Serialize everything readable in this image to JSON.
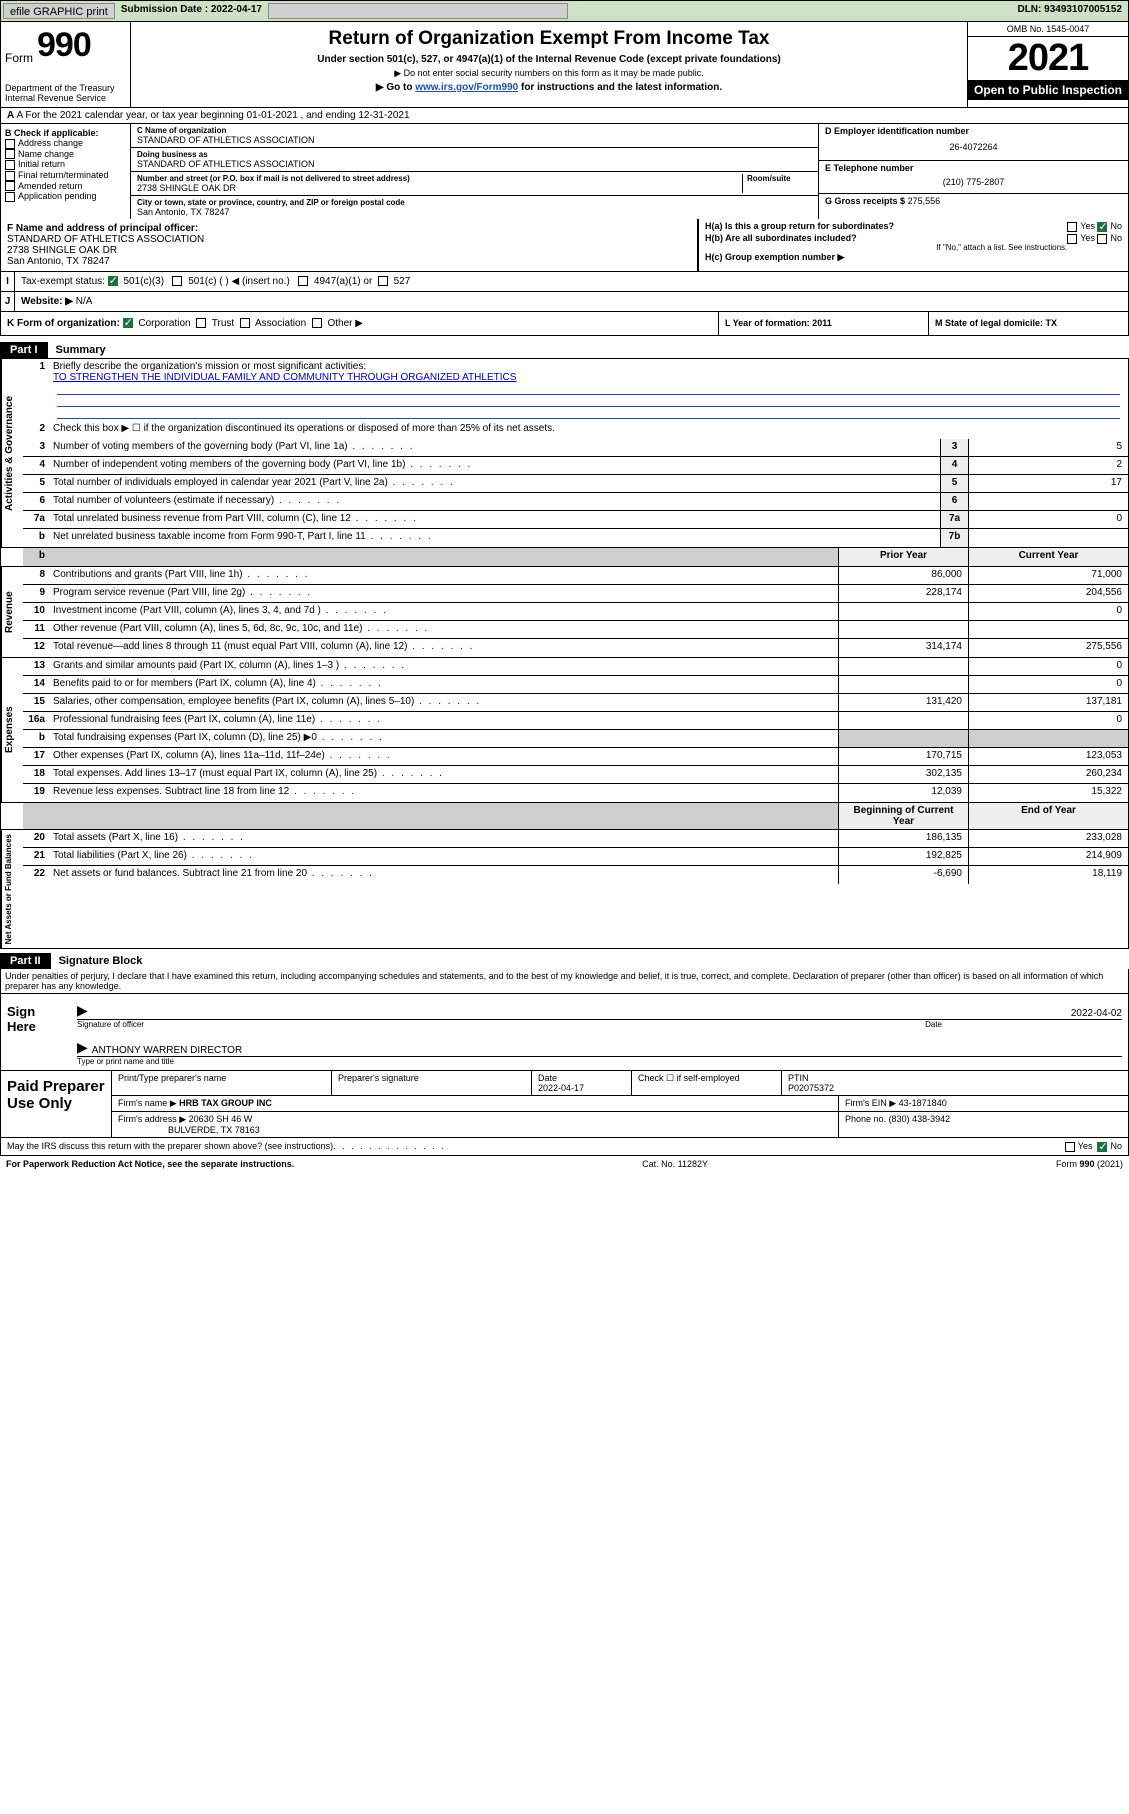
{
  "topbar": {
    "efile_btn": "efile GRAPHIC print",
    "submission_label": "Submission Date : 2022-04-17",
    "dln": "DLN: 93493107005152"
  },
  "header": {
    "form_prefix": "Form",
    "form_number": "990",
    "dept": "Department of the Treasury\nInternal Revenue Service",
    "title": "Return of Organization Exempt From Income Tax",
    "subtitle": "Under section 501(c), 527, or 4947(a)(1) of the Internal Revenue Code (except private foundations)",
    "note1": "▶ Do not enter social security numbers on this form as it may be made public.",
    "note2_pre": "▶ Go to ",
    "note2_link": "www.irs.gov/Form990",
    "note2_post": " for instructions and the latest information.",
    "omb": "OMB No. 1545-0047",
    "year": "2021",
    "open_public": "Open to Public Inspection"
  },
  "rowA": "A For the 2021 calendar year, or tax year beginning 01-01-2021   , and ending 12-31-2021",
  "colB": {
    "header": "B Check if applicable:",
    "items": [
      "Address change",
      "Name change",
      "Initial return",
      "Final return/terminated",
      "Amended return",
      "Application pending"
    ]
  },
  "colC": {
    "name_label": "C Name of organization",
    "name": "STANDARD OF ATHLETICS ASSOCIATION",
    "dba_label": "Doing business as",
    "dba": "STANDARD OF ATHLETICS ASSOCIATION",
    "addr_label": "Number and street (or P.O. box if mail is not delivered to street address)",
    "room_label": "Room/suite",
    "addr": "2738 SHINGLE OAK DR",
    "city_label": "City or town, state or province, country, and ZIP or foreign postal code",
    "city": "San Antonio, TX  78247"
  },
  "colDE": {
    "d_label": "D Employer identification number",
    "d_val": "26-4072264",
    "e_label": "E Telephone number",
    "e_val": "(210) 775-2807",
    "g_label": "G Gross receipts $",
    "g_val": "275,556"
  },
  "rowF": {
    "label": "F Name and address of principal officer:",
    "l1": "STANDARD OF ATHLETICS ASSOCIATION",
    "l2": "2738 SHINGLE OAK DR",
    "l3": "San Antonio, TX  78247"
  },
  "rowH": {
    "ha": "H(a)  Is this a group return for subordinates?",
    "ha_yes": "Yes",
    "ha_no": "No",
    "hb": "H(b)  Are all subordinates included?",
    "hb_yes": "Yes",
    "hb_no": "No",
    "hb_note": "If \"No,\" attach a list. See instructions.",
    "hc": "H(c)  Group exemption number ▶"
  },
  "rowI": {
    "label": "Tax-exempt status:",
    "o1": "501(c)(3)",
    "o2": "501(c) (   ) ◀ (insert no.)",
    "o3": "4947(a)(1) or",
    "o4": "527"
  },
  "rowJ": {
    "label": "Website: ▶",
    "val": "N/A"
  },
  "rowK": "K Form of organization:",
  "rowK_opts": [
    "Corporation",
    "Trust",
    "Association",
    "Other ▶"
  ],
  "rowL": "L Year of formation: 2011",
  "rowM": "M State of legal domicile: TX",
  "partI": {
    "tag": "Part I",
    "title": "Summary"
  },
  "summary": {
    "sectA": {
      "vtab": "Activities & Governance",
      "r1": "Briefly describe the organization's mission or most significant activities:",
      "r1_mission": "TO STRENGTHEN THE INDIVIDUAL FAMILY AND COMMUNITY THROUGH ORGANIZED ATHLETICS",
      "r2": "Check this box ▶ ☐  if the organization discontinued its operations or disposed of more than 25% of its net assets.",
      "rows": [
        {
          "n": "3",
          "d": "Number of voting members of the governing body (Part VI, line 1a)",
          "bx": "3",
          "v": "5"
        },
        {
          "n": "4",
          "d": "Number of independent voting members of the governing body (Part VI, line 1b)",
          "bx": "4",
          "v": "2"
        },
        {
          "n": "5",
          "d": "Total number of individuals employed in calendar year 2021 (Part V, line 2a)",
          "bx": "5",
          "v": "17"
        },
        {
          "n": "6",
          "d": "Total number of volunteers (estimate if necessary)",
          "bx": "6",
          "v": ""
        },
        {
          "n": "7a",
          "d": "Total unrelated business revenue from Part VIII, column (C), line 12",
          "bx": "7a",
          "v": "0"
        },
        {
          "n": "b",
          "d": "Net unrelated business taxable income from Form 990-T, Part I, line 11",
          "bx": "7b",
          "v": ""
        }
      ]
    },
    "head": {
      "prior": "Prior Year",
      "current": "Current Year"
    },
    "sectRev": {
      "vtab": "Revenue",
      "rows": [
        {
          "n": "8",
          "d": "Contributions and grants (Part VIII, line 1h)",
          "p": "86,000",
          "c": "71,000"
        },
        {
          "n": "9",
          "d": "Program service revenue (Part VIII, line 2g)",
          "p": "228,174",
          "c": "204,556"
        },
        {
          "n": "10",
          "d": "Investment income (Part VIII, column (A), lines 3, 4, and 7d )",
          "p": "",
          "c": "0"
        },
        {
          "n": "11",
          "d": "Other revenue (Part VIII, column (A), lines 5, 6d, 8c, 9c, 10c, and 11e)",
          "p": "",
          "c": ""
        },
        {
          "n": "12",
          "d": "Total revenue—add lines 8 through 11 (must equal Part VIII, column (A), line 12)",
          "p": "314,174",
          "c": "275,556"
        }
      ]
    },
    "sectExp": {
      "vtab": "Expenses",
      "rows": [
        {
          "n": "13",
          "d": "Grants and similar amounts paid (Part IX, column (A), lines 1–3 )",
          "p": "",
          "c": "0"
        },
        {
          "n": "14",
          "d": "Benefits paid to or for members (Part IX, column (A), line 4)",
          "p": "",
          "c": "0"
        },
        {
          "n": "15",
          "d": "Salaries, other compensation, employee benefits (Part IX, column (A), lines 5–10)",
          "p": "131,420",
          "c": "137,181"
        },
        {
          "n": "16a",
          "d": "Professional fundraising fees (Part IX, column (A), line 11e)",
          "p": "",
          "c": "0"
        },
        {
          "n": "b",
          "d": "Total fundraising expenses (Part IX, column (D), line 25) ▶0",
          "p": "SHADE",
          "c": "SHADE"
        },
        {
          "n": "17",
          "d": "Other expenses (Part IX, column (A), lines 11a–11d, 11f–24e)",
          "p": "170,715",
          "c": "123,053"
        },
        {
          "n": "18",
          "d": "Total expenses. Add lines 13–17 (must equal Part IX, column (A), line 25)",
          "p": "302,135",
          "c": "260,234"
        },
        {
          "n": "19",
          "d": "Revenue less expenses. Subtract line 18 from line 12",
          "p": "12,039",
          "c": "15,322"
        }
      ]
    },
    "headNA": {
      "prior": "Beginning of Current Year",
      "current": "End of Year"
    },
    "sectNA": {
      "vtab": "Net Assets or Fund Balances",
      "rows": [
        {
          "n": "20",
          "d": "Total assets (Part X, line 16)",
          "p": "186,135",
          "c": "233,028"
        },
        {
          "n": "21",
          "d": "Total liabilities (Part X, line 26)",
          "p": "192,825",
          "c": "214,909"
        },
        {
          "n": "22",
          "d": "Net assets or fund balances. Subtract line 21 from line 20",
          "p": "-6,690",
          "c": "18,119"
        }
      ]
    }
  },
  "partII": {
    "tag": "Part II",
    "title": "Signature Block"
  },
  "sig_intro": "Under penalties of perjury, I declare that I have examined this return, including accompanying schedules and statements, and to the best of my knowledge and belief, it is true, correct, and complete. Declaration of preparer (other than officer) is based on all information of which preparer has any knowledge.",
  "sign": {
    "label": "Sign Here",
    "date": "2022-04-02",
    "sig_label": "Signature of officer",
    "date_label": "Date",
    "name": "ANTHONY WARREN  DIRECTOR",
    "name_label": "Type or print name and title"
  },
  "prep": {
    "label": "Paid Preparer Use Only",
    "h1": "Print/Type preparer's name",
    "h2": "Preparer's signature",
    "h3": "Date",
    "h3v": "2022-04-17",
    "h4a": "Check ☐ if self-employed",
    "h5": "PTIN",
    "h5v": "P02075372",
    "firm_l": "Firm's name  ▶",
    "firm_v": "HRB TAX GROUP INC",
    "ein_l": "Firm's EIN ▶",
    "ein_v": "43-1871840",
    "addr_l": "Firm's address ▶",
    "addr_v1": "20630 SH 46 W",
    "addr_v2": "BULVERDE, TX  78163",
    "phone_l": "Phone no.",
    "phone_v": "(830) 438-3942"
  },
  "footer": {
    "q": "May the IRS discuss this return with the preparer shown above? (see instructions)",
    "yes": "Yes",
    "no": "No",
    "pra": "For Paperwork Reduction Act Notice, see the separate instructions.",
    "cat": "Cat. No. 11282Y",
    "form": "Form 990 (2021)"
  }
}
